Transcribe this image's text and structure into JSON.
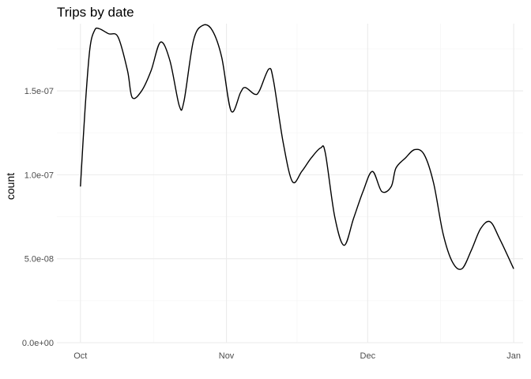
{
  "chart_data": {
    "type": "line",
    "title": "Trips by date",
    "xlabel": "",
    "ylabel": "count",
    "x_tick_labels": [
      "Oct",
      "Nov",
      "Dec",
      "Jan"
    ],
    "x_tick_dates": [
      "2014-10-01",
      "2014-11-01",
      "2014-12-01",
      "2015-01-01"
    ],
    "y_tick_labels": [
      "0.0e+00",
      "5.0e-08",
      "1.0e-07",
      "1.5e-07"
    ],
    "y_tick_values": [
      0,
      5e-08,
      1e-07,
      1.5e-07
    ],
    "xlim": [
      "2014-09-26",
      "2015-01-03"
    ],
    "ylim": [
      0,
      1.9e-07
    ],
    "grid": true,
    "legend": "none",
    "line_color": "#000000",
    "series": [
      {
        "x": [
          "2014-10-01",
          "2014-10-02",
          "2014-10-03",
          "2014-10-04",
          "2014-10-05",
          "2014-10-07",
          "2014-10-09",
          "2014-10-11",
          "2014-10-12",
          "2014-10-14",
          "2014-10-16",
          "2014-10-18",
          "2014-10-20",
          "2014-10-22",
          "2014-10-23",
          "2014-10-25",
          "2014-10-27",
          "2014-10-29",
          "2014-10-31",
          "2014-11-02",
          "2014-11-04",
          "2014-11-05",
          "2014-11-07",
          "2014-11-08",
          "2014-11-10",
          "2014-11-11",
          "2014-11-13",
          "2014-11-15",
          "2014-11-17",
          "2014-11-19",
          "2014-11-21",
          "2014-11-22",
          "2014-11-24",
          "2014-11-26",
          "2014-11-28",
          "2014-11-30",
          "2014-12-02",
          "2014-12-04",
          "2014-12-06",
          "2014-12-07",
          "2014-12-09",
          "2014-12-11",
          "2014-12-13",
          "2014-12-15",
          "2014-12-17",
          "2014-12-19",
          "2014-12-21",
          "2014-12-23",
          "2014-12-25",
          "2014-12-27",
          "2014-12-29",
          "2015-01-01"
        ],
        "values": [
          9.3e-08,
          1.4e-07,
          1.75e-07,
          1.86e-07,
          1.87e-07,
          1.84e-07,
          1.82e-07,
          1.62e-07,
          1.46e-07,
          1.5e-07,
          1.62e-07,
          1.79e-07,
          1.68e-07,
          1.41e-07,
          1.44e-07,
          1.8e-07,
          1.89e-07,
          1.86e-07,
          1.7e-07,
          1.38e-07,
          1.49e-07,
          1.52e-07,
          1.48e-07,
          1.5e-07,
          1.63e-07,
          1.56e-07,
          1.2e-07,
          9.6e-08,
          1.02e-07,
          1.1e-07,
          1.16e-07,
          1.13e-07,
          7.5e-08,
          5.8e-08,
          7.4e-08,
          9e-08,
          1.02e-07,
          9e-08,
          9.3e-08,
          1.04e-07,
          1.1e-07,
          1.15e-07,
          1.12e-07,
          9.5e-08,
          6.5e-08,
          4.8e-08,
          4.4e-08,
          5.5e-08,
          6.8e-08,
          7.2e-08,
          6.2e-08,
          4.4e-08
        ]
      }
    ]
  }
}
